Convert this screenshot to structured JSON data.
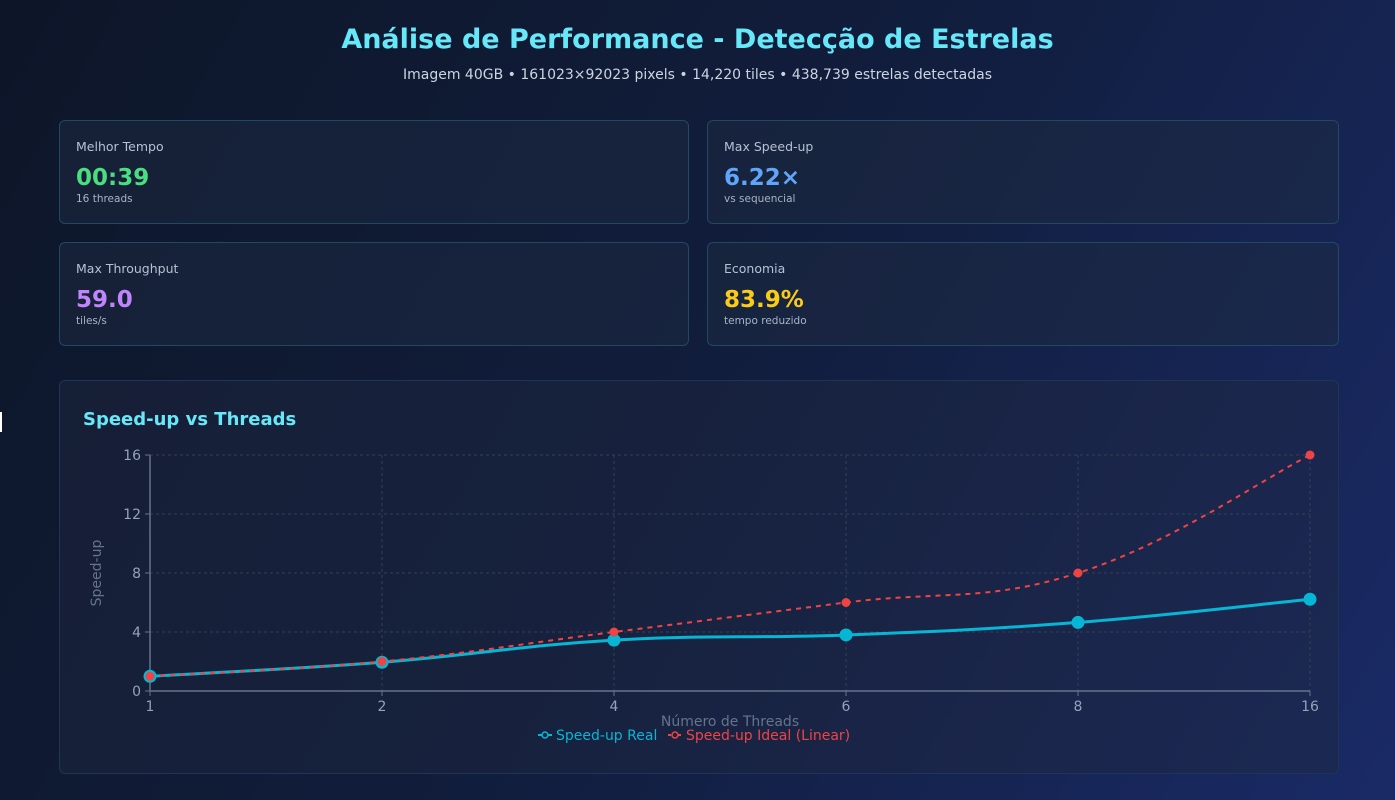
{
  "header": {
    "title": "Análise de Performance - Detecção de Estrelas",
    "subtitle": "Imagem 40GB • 161023×92023 pixels • 14,220 tiles • 438,739 estrelas detectadas"
  },
  "cards": [
    {
      "label": "Melhor Tempo",
      "value": "00:39",
      "sub": "16 threads",
      "color": "#4ade80"
    },
    {
      "label": "Max Speed-up",
      "value": "6.22×",
      "sub": "vs sequencial",
      "color": "#60a5fa"
    },
    {
      "label": "Max Throughput",
      "value": "59.0",
      "sub": "tiles/s",
      "color": "#c084fc"
    },
    {
      "label": "Economia",
      "value": "83.9%",
      "sub": "tempo reduzido",
      "color": "#facc15"
    }
  ],
  "chart_data": {
    "type": "line",
    "title": "Speed-up vs Threads",
    "xlabel": "Número de Threads",
    "ylabel": "Speed-up",
    "categories": [
      "1",
      "2",
      "4",
      "6",
      "8",
      "16"
    ],
    "ylim": [
      0,
      16
    ],
    "yticks": [
      0,
      4,
      8,
      12,
      16
    ],
    "grid": true,
    "legend": "bottom-center",
    "series": [
      {
        "name": "Speed-up Real",
        "values": [
          1.0,
          1.95,
          3.45,
          3.8,
          4.65,
          6.22
        ],
        "color": "#06b6d4",
        "dashed": false
      },
      {
        "name": "Speed-up Ideal (Linear)",
        "values": [
          1,
          2,
          4,
          6,
          8,
          16
        ],
        "color": "#ef4444",
        "dashed": true
      }
    ]
  }
}
